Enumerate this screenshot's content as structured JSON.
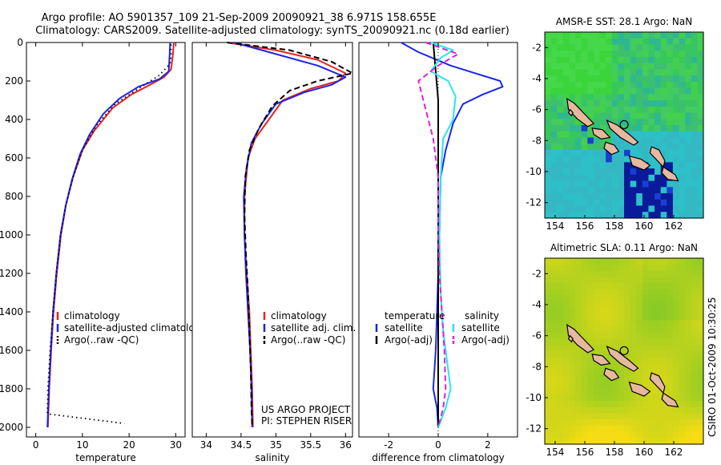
{
  "title_line1": "Argo profile: AO 5901357_109 21-Sep-2009 20090921_38 6.971S 158.655E",
  "title_line2": "Climatology: CARS2009. Satellite-adjusted climatology: synTS_20090921.nc (0.18d earlier)",
  "footer_credit": "CSIRO 01-Oct-2009 10:30:25",
  "colors": {
    "climatology": "#e8231c",
    "satellite": "#1b26e6",
    "argo": "#000000",
    "cyan": "#28e6f0",
    "magenta": "#e020d8"
  },
  "chart_data": [
    {
      "type": "line",
      "xlabel": "temperature",
      "xlim": [
        -2,
        32
      ],
      "ylim": [
        0,
        2050
      ],
      "y_reversed": true,
      "xticks": [
        0,
        10,
        20,
        30
      ],
      "yticks": [
        0,
        200,
        400,
        600,
        800,
        1000,
        1200,
        1400,
        1600,
        1800,
        2000
      ],
      "legend": {
        "position": "lower-center",
        "entries": [
          "climatology",
          "satellite-adjusted climatolog",
          "Argo(..raw -QC)"
        ]
      },
      "series": [
        {
          "name": "climatology",
          "color": "#e8231c",
          "style": "solid",
          "points": [
            [
              29.6,
              0
            ],
            [
              29.4,
              60
            ],
            [
              29.0,
              140
            ],
            [
              27.5,
              180
            ],
            [
              24.5,
              220
            ],
            [
              20.5,
              270
            ],
            [
              16.5,
              340
            ],
            [
              12.5,
              460
            ],
            [
              10.0,
              560
            ],
            [
              8.0,
              700
            ],
            [
              6.5,
              840
            ],
            [
              5.4,
              1000
            ],
            [
              4.5,
              1200
            ],
            [
              3.8,
              1400
            ],
            [
              3.3,
              1600
            ],
            [
              2.9,
              1800
            ],
            [
              2.6,
              2000
            ]
          ]
        },
        {
          "name": "satellite-adjusted climatolog",
          "color": "#1b26e6",
          "style": "solid",
          "points": [
            [
              28.8,
              0
            ],
            [
              28.7,
              60
            ],
            [
              28.5,
              150
            ],
            [
              26.5,
              190
            ],
            [
              22.0,
              230
            ],
            [
              18.0,
              290
            ],
            [
              14.5,
              370
            ],
            [
              11.5,
              480
            ],
            [
              9.5,
              580
            ],
            [
              7.8,
              710
            ],
            [
              6.4,
              850
            ],
            [
              5.3,
              1000
            ],
            [
              4.4,
              1200
            ],
            [
              3.7,
              1400
            ],
            [
              3.2,
              1600
            ],
            [
              2.8,
              1800
            ],
            [
              2.5,
              2000
            ]
          ]
        },
        {
          "name": "Argo(..raw -QC)",
          "color": "#000000",
          "style": "dotted",
          "points": [
            [
              29.0,
              10
            ],
            [
              29.0,
              60
            ],
            [
              28.8,
              110
            ],
            [
              26.5,
              170
            ],
            [
              22.0,
              240
            ],
            [
              17.0,
              320
            ],
            [
              13.0,
              430
            ],
            [
              10.0,
              560
            ],
            [
              8.0,
              700
            ],
            [
              6.4,
              850
            ],
            [
              5.3,
              1000
            ],
            [
              4.4,
              1200
            ],
            [
              3.7,
              1400
            ],
            [
              3.1,
              1600
            ],
            [
              2.6,
              1800
            ],
            [
              2.5,
              1930
            ],
            [
              19.0,
              1980
            ]
          ]
        }
      ]
    },
    {
      "type": "line",
      "xlabel": "salinity",
      "xlim": [
        33.8,
        36.1
      ],
      "ylim": [
        0,
        2050
      ],
      "y_reversed": true,
      "xticks": [
        34,
        34.5,
        35,
        35.5,
        36
      ],
      "xticklabels": [
        "34",
        "34.5",
        "35",
        "35.5",
        "36"
      ],
      "legend": {
        "position": "lower-center",
        "entries": [
          "climatology",
          "satellite adj. clim.",
          "Argo(..raw -QC)"
        ]
      },
      "annotation": [
        "US ARGO PROJECT",
        "PI: STEPHEN RISER"
      ],
      "series": [
        {
          "name": "climatology",
          "color": "#e8231c",
          "style": "solid",
          "points": [
            [
              34.3,
              0
            ],
            [
              35.0,
              40
            ],
            [
              35.6,
              90
            ],
            [
              36.0,
              160
            ],
            [
              35.9,
              200
            ],
            [
              35.5,
              240
            ],
            [
              35.1,
              300
            ],
            [
              34.9,
              400
            ],
            [
              34.7,
              500
            ],
            [
              34.6,
              600
            ],
            [
              34.55,
              800
            ],
            [
              34.55,
              1000
            ],
            [
              34.58,
              1200
            ],
            [
              34.62,
              1400
            ],
            [
              34.64,
              1600
            ],
            [
              34.66,
              1800
            ],
            [
              34.67,
              2000
            ]
          ]
        },
        {
          "name": "satellite adj. clim.",
          "color": "#1b26e6",
          "style": "solid",
          "points": [
            [
              34.4,
              0
            ],
            [
              35.0,
              60
            ],
            [
              35.6,
              120
            ],
            [
              36.0,
              180
            ],
            [
              35.8,
              220
            ],
            [
              35.4,
              260
            ],
            [
              35.0,
              320
            ],
            [
              34.8,
              420
            ],
            [
              34.65,
              520
            ],
            [
              34.58,
              650
            ],
            [
              34.54,
              800
            ],
            [
              34.55,
              1000
            ],
            [
              34.57,
              1200
            ],
            [
              34.6,
              1400
            ],
            [
              34.63,
              1600
            ],
            [
              34.65,
              1800
            ],
            [
              34.66,
              2000
            ]
          ]
        },
        {
          "name": "Argo(..raw -QC)",
          "color": "#000000",
          "style": "dashed",
          "points": [
            [
              34.3,
              0
            ],
            [
              35.2,
              40
            ],
            [
              35.8,
              100
            ],
            [
              36.1,
              160
            ],
            [
              35.6,
              200
            ],
            [
              35.2,
              250
            ],
            [
              34.95,
              330
            ],
            [
              34.75,
              450
            ],
            [
              34.62,
              560
            ],
            [
              34.56,
              700
            ],
            [
              34.55,
              900
            ],
            [
              34.57,
              1100
            ],
            [
              34.6,
              1300
            ],
            [
              34.62,
              1500
            ],
            [
              34.64,
              1700
            ],
            [
              34.65,
              1900
            ],
            [
              34.66,
              2000
            ]
          ]
        }
      ]
    },
    {
      "type": "line",
      "xlabel": "difference from climatology",
      "xlim": [
        -3.2,
        3.2
      ],
      "ylim": [
        0,
        2050
      ],
      "y_reversed": true,
      "xticks": [
        -2,
        0,
        2
      ],
      "legend": {
        "position": "lower-center",
        "groups": [
          "temperature",
          "salinity"
        ],
        "entries": [
          "satellite",
          "Argo(-adj)",
          "satellite",
          "Argo(-adj)"
        ]
      },
      "series": [
        {
          "name": "satellite",
          "group": "temperature",
          "color": "#1b26e6",
          "style": "solid",
          "points": [
            [
              -1.5,
              0
            ],
            [
              -0.8,
              50
            ],
            [
              0.5,
              120
            ],
            [
              1.5,
              160
            ],
            [
              2.5,
              200
            ],
            [
              2.6,
              230
            ],
            [
              1.8,
              270
            ],
            [
              1.0,
              320
            ],
            [
              0.6,
              420
            ],
            [
              0.3,
              560
            ],
            [
              0.1,
              700
            ],
            [
              0.05,
              1000
            ],
            [
              -0.05,
              1400
            ],
            [
              -0.1,
              1600
            ],
            [
              -0.2,
              1800
            ],
            [
              -0.05,
              1900
            ],
            [
              0.0,
              2000
            ]
          ]
        },
        {
          "name": "Argo(-adj)",
          "group": "temperature",
          "color": "#000000",
          "style": "solid",
          "points": [
            [
              -0.2,
              0
            ],
            [
              0.0,
              300
            ],
            [
              0.0,
              2000
            ]
          ]
        },
        {
          "name": "satellite",
          "group": "salinity",
          "color": "#28e6f0",
          "style": "solid",
          "points": [
            [
              -0.3,
              0
            ],
            [
              0.6,
              40
            ],
            [
              0.1,
              80
            ],
            [
              -0.3,
              150
            ],
            [
              0.4,
              200
            ],
            [
              0.7,
              280
            ],
            [
              0.6,
              400
            ],
            [
              0.2,
              500
            ],
            [
              0.1,
              700
            ],
            [
              0.05,
              1000
            ],
            [
              0.1,
              1300
            ],
            [
              0.2,
              1500
            ],
            [
              0.4,
              1700
            ],
            [
              0.5,
              1800
            ],
            [
              0.3,
              1900
            ],
            [
              0.0,
              2000
            ]
          ]
        },
        {
          "name": "Argo(-adj)",
          "group": "salinity",
          "color": "#e020d8",
          "style": "dashed",
          "points": [
            [
              -0.5,
              0
            ],
            [
              0.8,
              60
            ],
            [
              0.0,
              120
            ],
            [
              -0.8,
              200
            ],
            [
              -0.6,
              300
            ],
            [
              -0.4,
              400
            ],
            [
              -0.2,
              500
            ],
            [
              0.0,
              700
            ],
            [
              0.0,
              1000
            ],
            [
              0.05,
              1200
            ],
            [
              0.15,
              1400
            ],
            [
              0.25,
              1600
            ],
            [
              0.3,
              1800
            ],
            [
              0.2,
              1900
            ],
            [
              0.0,
              2000
            ]
          ]
        }
      ]
    },
    {
      "type": "heatmap",
      "title": "AMSR-E SST: 28.1 Argo: NaN",
      "xlim": [
        153.3,
        164
      ],
      "ylim": [
        -13,
        -1
      ],
      "xticks": [
        154,
        156,
        158,
        160,
        162
      ],
      "yticks": [
        -2,
        -4,
        -6,
        -8,
        -10,
        -12
      ],
      "marker": {
        "lon": 158.655,
        "lat": -6.971
      }
    },
    {
      "type": "heatmap",
      "title": "Altimetric SLA: 0.11 Argo: NaN",
      "xlim": [
        153.3,
        164
      ],
      "ylim": [
        -13,
        -1
      ],
      "xticks": [
        154,
        156,
        158,
        160,
        162
      ],
      "yticks": [
        -2,
        -4,
        -6,
        -8,
        -10,
        -12
      ],
      "marker": {
        "lon": 158.655,
        "lat": -6.971
      }
    }
  ]
}
